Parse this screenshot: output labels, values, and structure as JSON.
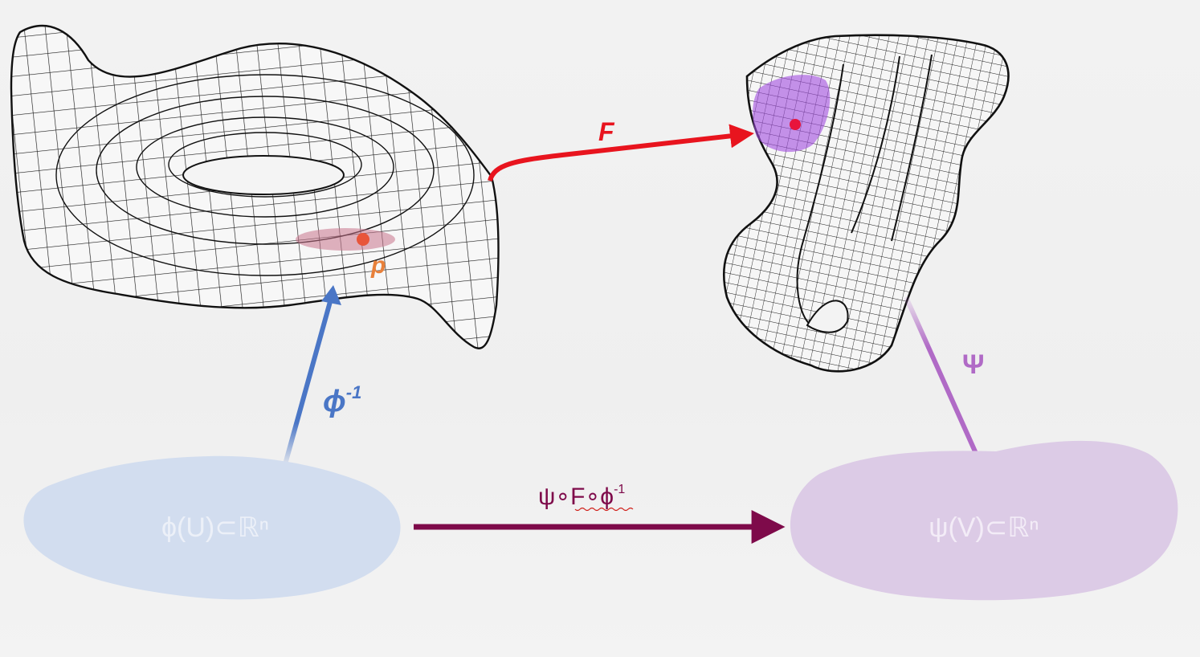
{
  "diagram": {
    "map_F": "F",
    "map_phi_inverse_base": "ϕ",
    "map_phi_inverse_exp": "-1",
    "map_psi": "Ψ",
    "point_p": "p",
    "composite_map_base": "ψ∘F∘ϕ",
    "composite_map_exp": "-1",
    "chart_left": "ϕ(U)⊂ℝⁿ",
    "chart_right": "ψ(V)⊂ℝⁿ"
  },
  "colors": {
    "F_arrow": "#e8141e",
    "phi_arrow": "#4a76c6",
    "psi_arrow": "#b06ac6",
    "composite_arrow": "#7e0a4a",
    "left_chart_fill": "#d2ddef",
    "right_chart_fill": "#dccbe6",
    "point_p": "#e8553a",
    "patch_left": "#c9748c",
    "patch_right": "#a24de0",
    "point_right": "#e8143c"
  }
}
